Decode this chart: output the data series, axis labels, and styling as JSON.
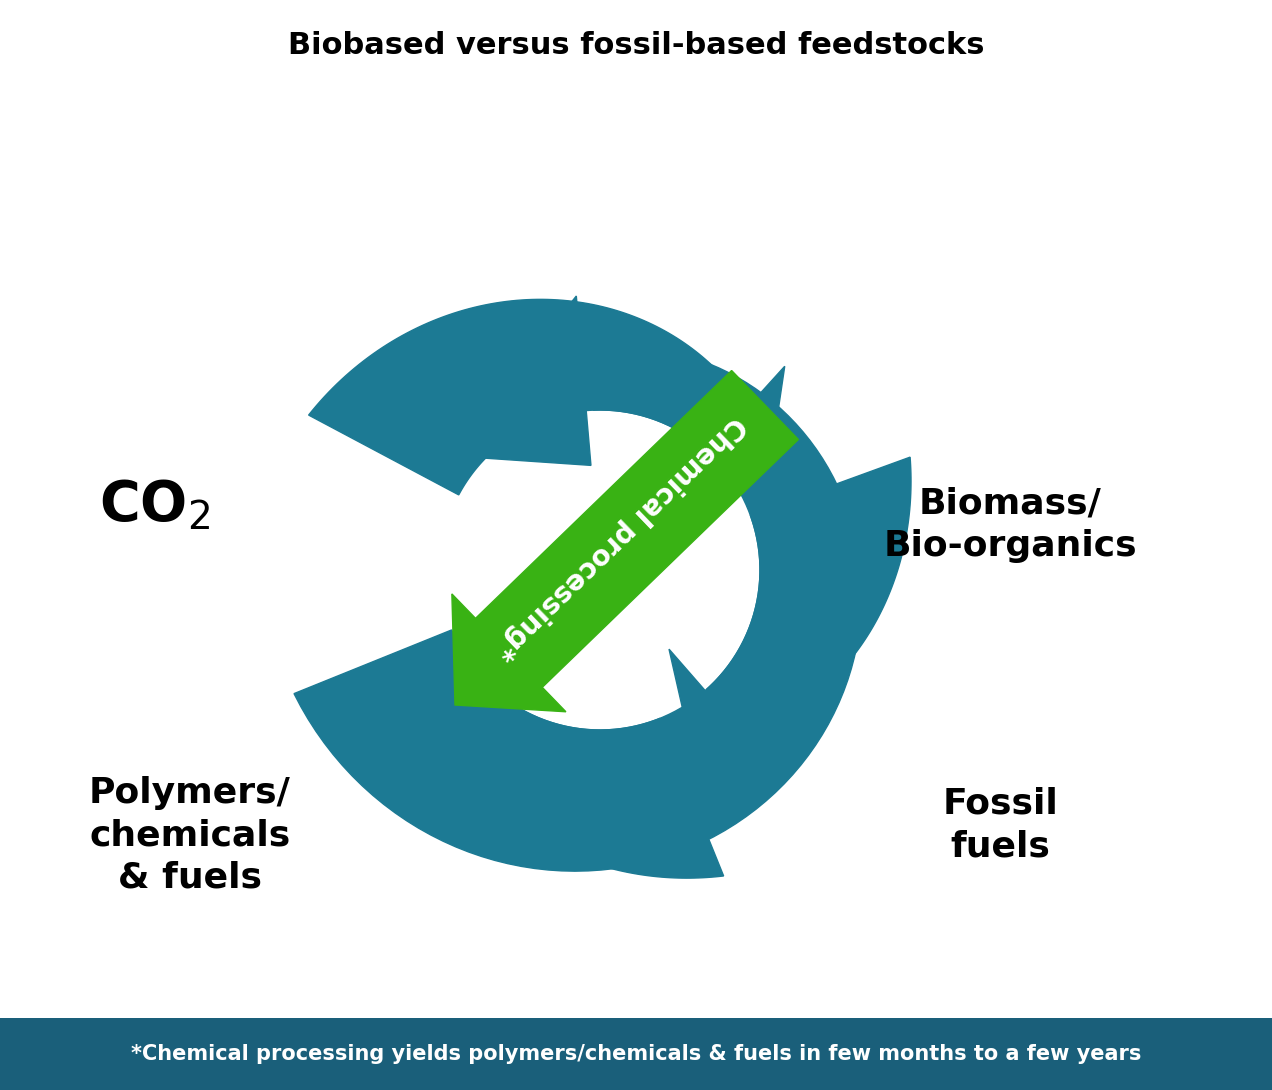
{
  "title": "Biobased versus fossil-based feedstocks",
  "title_fontsize": 22,
  "title_fontweight": "bold",
  "teal_color": "#1c7a94",
  "green_color": "#39b214",
  "white": "#ffffff",
  "black": "#000000",
  "footer_bg": "#1a5f7a",
  "footer_text": "*Chemical processing yields polymers/chemicals & fuels in few months to a few years",
  "footer_fontsize": 15,
  "label_biomass": "Biomass/\nBio-organics",
  "label_fossil": "Fossil\nfuels",
  "label_polymers": "Polymers/\nchemicals\n& fuels",
  "label_arrow": "Chemical processing*",
  "label_fontsize": 26,
  "co2_fontsize": 40,
  "arrow_label_fontsize": 20,
  "time_fontsize": 17
}
